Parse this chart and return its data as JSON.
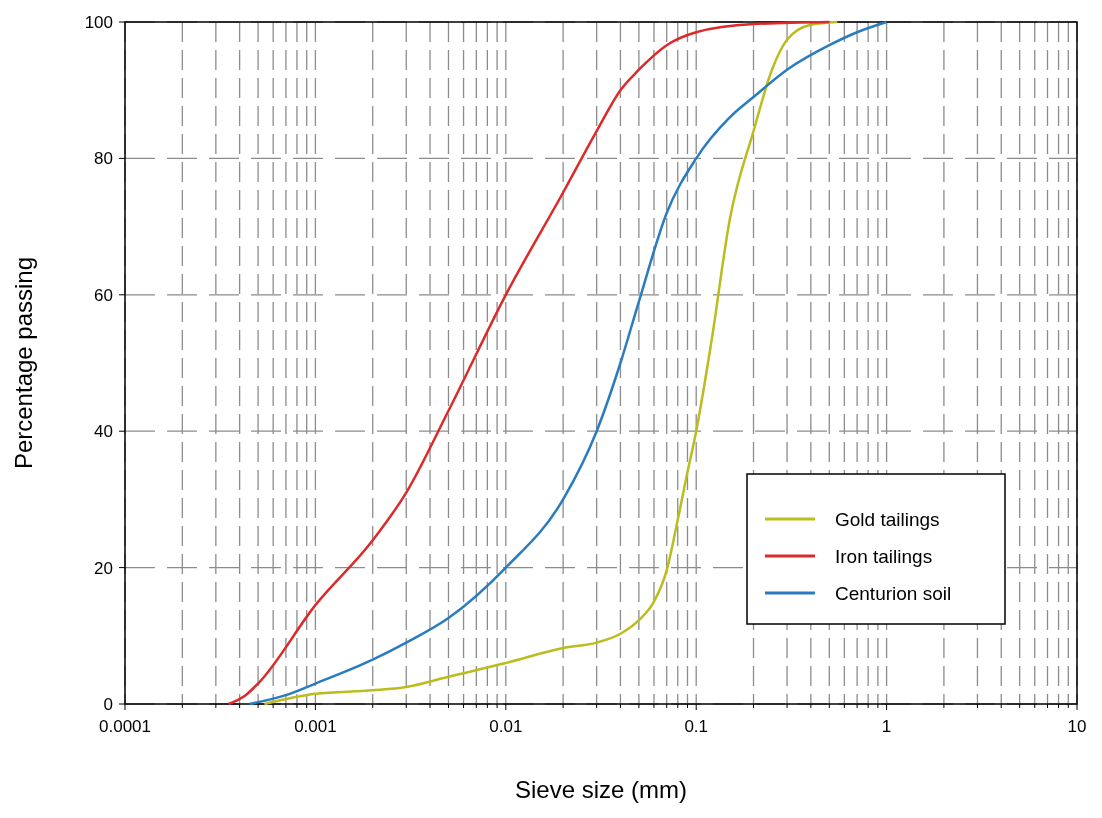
{
  "chart_data": {
    "type": "line",
    "xlabel": "Sieve size (mm)",
    "ylabel": "Percentage passing",
    "log": "x",
    "xlim": [
      0.0001,
      10
    ],
    "xticks": [
      0.0001,
      0.001,
      0.01,
      0.1,
      1,
      10
    ],
    "ylim": [
      0,
      100
    ],
    "yticks": [
      0,
      20,
      40,
      60,
      80,
      100
    ],
    "grid": true,
    "legend": "bottom right",
    "marker": "none",
    "line_style": "solid",
    "series": [
      {
        "name": "Gold tailings",
        "color": "#bcbc1e",
        "x": [
          0.00054,
          0.001,
          0.002,
          0.003,
          0.005,
          0.01,
          0.02,
          0.03,
          0.04,
          0.05,
          0.06,
          0.07,
          0.08,
          0.09,
          0.1,
          0.12,
          0.15,
          0.2,
          0.25,
          0.3,
          0.4,
          0.55
        ],
        "values": [
          0,
          1.5,
          2,
          2.5,
          4,
          6,
          8.2,
          9,
          10.3,
          12.3,
          15,
          19.6,
          27,
          34,
          40,
          53,
          71,
          84,
          93,
          97.4,
          99.6,
          100
        ]
      },
      {
        "name": "Iron tailings",
        "color": "#dc2a2a",
        "x": [
          0.00035,
          0.00043,
          0.0005,
          0.001,
          0.002,
          0.003,
          0.005,
          0.01,
          0.02,
          0.03,
          0.04,
          0.05,
          0.07,
          0.1,
          0.2,
          0.5
        ],
        "values": [
          0,
          1.3,
          3,
          14.5,
          24,
          31,
          43,
          60,
          75,
          84,
          90,
          93,
          96.6,
          98.5,
          99.7,
          100
        ]
      },
      {
        "name": "Centurion soil",
        "color": "#2a7bbf",
        "x": [
          0.00045,
          0.0007,
          0.001,
          0.002,
          0.003,
          0.005,
          0.01,
          0.02,
          0.03,
          0.04,
          0.05,
          0.07,
          0.1,
          0.15,
          0.2,
          0.3,
          0.5,
          0.7,
          1
        ],
        "values": [
          0,
          1.3,
          3,
          6.5,
          9,
          12.6,
          20,
          30,
          40,
          50,
          59,
          72,
          80,
          86,
          89,
          93,
          96.6,
          98.5,
          100
        ]
      }
    ]
  }
}
